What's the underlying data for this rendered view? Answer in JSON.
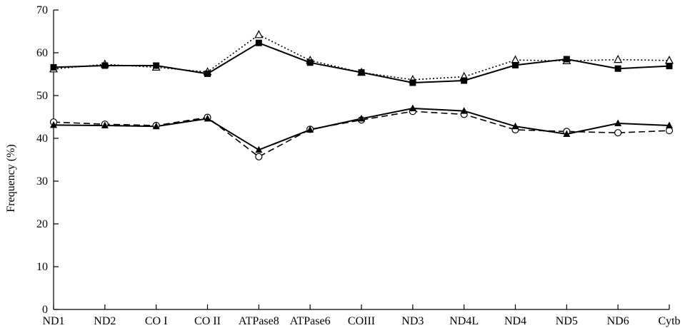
{
  "chart_data": {
    "type": "line",
    "title": "",
    "xlabel": "",
    "ylabel": "Frequency (%)",
    "ylim": [
      0,
      70
    ],
    "yticks": [
      0,
      10,
      20,
      30,
      40,
      50,
      60,
      70
    ],
    "grid": false,
    "legend": "none",
    "categories": [
      "ND1",
      "ND2",
      "CO I",
      "CO II",
      "ATPase8",
      "ATPase6",
      "COIII",
      "ND3",
      "ND4L",
      "ND4",
      "ND5",
      "ND6",
      "Cytb"
    ],
    "series": [
      {
        "marker": "open-triangle",
        "line": "dotted",
        "color": "#000000",
        "values": [
          56.2,
          57.3,
          56.6,
          55.5,
          64.2,
          58.2,
          55.4,
          53.7,
          54.4,
          58.3,
          58.1,
          58.4,
          58.2
        ]
      },
      {
        "marker": "filled-square",
        "line": "solid",
        "color": "#000000",
        "values": [
          56.6,
          57.0,
          57.0,
          55.1,
          62.3,
          57.7,
          55.4,
          53.0,
          53.5,
          57.1,
          58.5,
          56.3,
          56.9
        ]
      },
      {
        "marker": "open-circle",
        "line": "dashed",
        "color": "#000000",
        "values": [
          43.8,
          43.3,
          43.0,
          44.9,
          35.7,
          42.1,
          44.3,
          46.3,
          45.6,
          42.0,
          41.6,
          41.3,
          41.8
        ]
      },
      {
        "marker": "filled-triangle",
        "line": "solid",
        "color": "#000000",
        "values": [
          43.1,
          43.0,
          42.8,
          44.6,
          37.3,
          42.0,
          44.6,
          47.0,
          46.4,
          42.8,
          41.0,
          43.5,
          43.0
        ]
      }
    ]
  }
}
